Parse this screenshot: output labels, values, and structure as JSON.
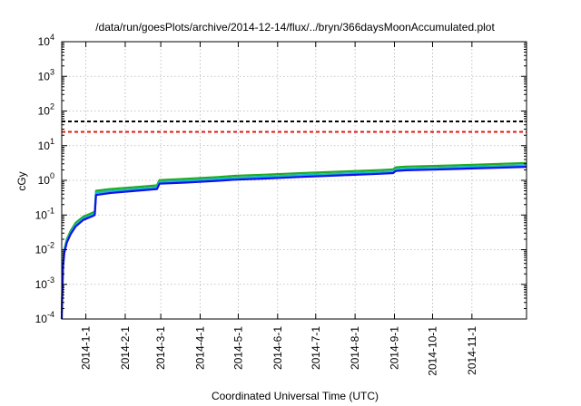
{
  "chart_data": {
    "type": "line",
    "title": "/data/run/goesPlots/archive/2014-12-14/flux/../bryn/366daysMoonAccumulated.plot",
    "xlabel": "Coordinated Universal Time (UTC)",
    "ylabel": "cGy",
    "x_range": [
      "2013-12-13",
      "2014-12-14"
    ],
    "y_scale": "log",
    "ylim": [
      0.0001,
      10000
    ],
    "grid": true,
    "x_ticks": [
      "2014-1-1",
      "2014-2-1",
      "2014-3-1",
      "2014-4-1",
      "2014-5-1",
      "2014-6-1",
      "2014-7-1",
      "2014-8-1",
      "2014-9-1",
      "2014-10-1",
      "2014-11-1"
    ],
    "y_ticks": [
      {
        "value": 0.0001,
        "base": "10",
        "exp": "-4"
      },
      {
        "value": 0.001,
        "base": "10",
        "exp": "-3"
      },
      {
        "value": 0.01,
        "base": "10",
        "exp": "-2"
      },
      {
        "value": 0.1,
        "base": "10",
        "exp": "-1"
      },
      {
        "value": 1,
        "base": "10",
        "exp": "0"
      },
      {
        "value": 10,
        "base": "10",
        "exp": "1"
      },
      {
        "value": 100,
        "base": "10",
        "exp": "2"
      },
      {
        "value": 1000,
        "base": "10",
        "exp": "3"
      },
      {
        "value": 10000,
        "base": "10",
        "exp": "4"
      }
    ],
    "thresholds": [
      {
        "value": 50,
        "color": "#000000"
      },
      {
        "value": 25,
        "color": "#e8140c"
      }
    ],
    "series": [
      {
        "color": "#22aa22",
        "points": [
          [
            "2013-12-13",
            0.0002
          ],
          [
            "2013-12-14",
            0.004
          ],
          [
            "2013-12-15",
            0.01
          ],
          [
            "2013-12-17",
            0.02
          ],
          [
            "2013-12-20",
            0.035
          ],
          [
            "2013-12-24",
            0.06
          ],
          [
            "2013-12-30",
            0.09
          ],
          [
            "2014-01-06",
            0.115
          ],
          [
            "2014-01-08",
            0.125
          ],
          [
            "2014-01-09",
            0.5
          ],
          [
            "2014-01-20",
            0.56
          ],
          [
            "2014-02-10",
            0.64
          ],
          [
            "2014-02-26",
            0.72
          ],
          [
            "2014-02-28",
            1.02
          ],
          [
            "2014-03-20",
            1.1
          ],
          [
            "2014-04-15",
            1.25
          ],
          [
            "2014-04-28",
            1.35
          ],
          [
            "2014-05-20",
            1.45
          ],
          [
            "2014-06-20",
            1.62
          ],
          [
            "2014-07-20",
            1.78
          ],
          [
            "2014-08-20",
            1.98
          ],
          [
            "2014-08-31",
            2.08
          ],
          [
            "2014-09-02",
            2.38
          ],
          [
            "2014-09-10",
            2.5
          ],
          [
            "2014-10-01",
            2.6
          ],
          [
            "2014-11-01",
            2.8
          ],
          [
            "2014-12-14",
            3.15
          ]
        ]
      },
      {
        "color": "#16b8c8",
        "points": [
          [
            "2013-12-13",
            0.00015
          ],
          [
            "2013-12-14",
            0.0035
          ],
          [
            "2013-12-15",
            0.009
          ],
          [
            "2013-12-17",
            0.018
          ],
          [
            "2013-12-20",
            0.031
          ],
          [
            "2013-12-24",
            0.053
          ],
          [
            "2013-12-30",
            0.08
          ],
          [
            "2014-01-06",
            0.102
          ],
          [
            "2014-01-08",
            0.112
          ],
          [
            "2014-01-09",
            0.44
          ],
          [
            "2014-01-20",
            0.49
          ],
          [
            "2014-02-10",
            0.56
          ],
          [
            "2014-02-26",
            0.63
          ],
          [
            "2014-02-28",
            0.9
          ],
          [
            "2014-03-20",
            0.97
          ],
          [
            "2014-04-15",
            1.1
          ],
          [
            "2014-04-28",
            1.18
          ],
          [
            "2014-05-20",
            1.27
          ],
          [
            "2014-06-20",
            1.42
          ],
          [
            "2014-07-20",
            1.56
          ],
          [
            "2014-08-20",
            1.73
          ],
          [
            "2014-08-31",
            1.82
          ],
          [
            "2014-09-02",
            2.08
          ],
          [
            "2014-09-10",
            2.18
          ],
          [
            "2014-10-01",
            2.28
          ],
          [
            "2014-11-01",
            2.46
          ],
          [
            "2014-12-14",
            2.75
          ]
        ]
      },
      {
        "color": "#1010ee",
        "points": [
          [
            "2013-12-13",
            0.0001
          ],
          [
            "2013-12-14",
            0.003
          ],
          [
            "2013-12-15",
            0.008
          ],
          [
            "2013-12-17",
            0.016
          ],
          [
            "2013-12-20",
            0.028
          ],
          [
            "2013-12-24",
            0.047
          ],
          [
            "2013-12-30",
            0.072
          ],
          [
            "2014-01-06",
            0.092
          ],
          [
            "2014-01-08",
            0.1
          ],
          [
            "2014-01-09",
            0.38
          ],
          [
            "2014-01-20",
            0.43
          ],
          [
            "2014-02-10",
            0.5
          ],
          [
            "2014-02-26",
            0.56
          ],
          [
            "2014-02-28",
            0.8
          ],
          [
            "2014-03-20",
            0.86
          ],
          [
            "2014-04-15",
            0.97
          ],
          [
            "2014-04-28",
            1.04
          ],
          [
            "2014-05-20",
            1.12
          ],
          [
            "2014-06-20",
            1.26
          ],
          [
            "2014-07-20",
            1.39
          ],
          [
            "2014-08-20",
            1.54
          ],
          [
            "2014-08-31",
            1.62
          ],
          [
            "2014-09-02",
            1.86
          ],
          [
            "2014-09-10",
            1.95
          ],
          [
            "2014-10-01",
            2.04
          ],
          [
            "2014-11-01",
            2.2
          ],
          [
            "2014-12-14",
            2.45
          ]
        ]
      }
    ]
  }
}
